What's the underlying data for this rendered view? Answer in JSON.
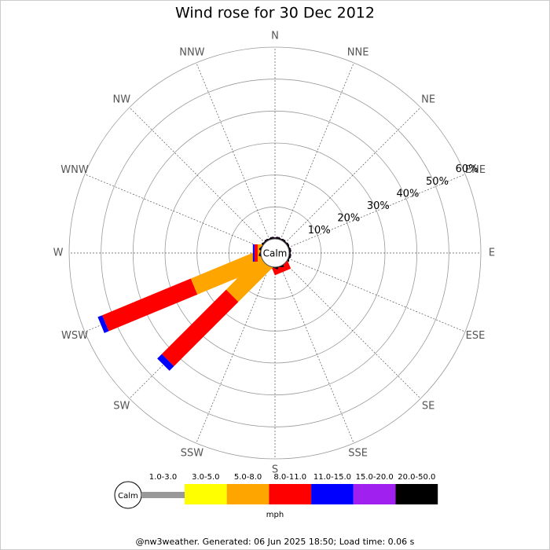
{
  "chart_data": {
    "type": "windrose",
    "title": "Wind rose for 30 Dec 2012",
    "calm_label": "Calm",
    "categories": [
      "N",
      "NNE",
      "NE",
      "ENE",
      "E",
      "ESE",
      "SE",
      "SSE",
      "S",
      "SSW",
      "SW",
      "WSW",
      "W",
      "WNW",
      "NW",
      "NNW"
    ],
    "rlim": [
      0,
      60
    ],
    "rticks": [
      {
        "value": 10,
        "label": "10%"
      },
      {
        "value": 20,
        "label": "20%"
      },
      {
        "value": 30,
        "label": "30%"
      },
      {
        "value": 40,
        "label": "40%"
      },
      {
        "value": 50,
        "label": "50%"
      },
      {
        "value": 60,
        "label": "60%"
      }
    ],
    "unit_label": "mph",
    "series": [
      {
        "name": "1.0-3.0",
        "color": "#999999",
        "values": [
          0,
          0,
          0,
          0,
          0,
          0,
          0,
          0,
          0,
          0,
          0,
          0,
          0,
          0,
          0,
          0
        ]
      },
      {
        "name": "3.0-5.0",
        "color": "#ffff00",
        "values": [
          0,
          0,
          0,
          0,
          0,
          0,
          0,
          0,
          0,
          0,
          0,
          0,
          0,
          0,
          0,
          0
        ]
      },
      {
        "name": "5.0-8.0",
        "color": "#ffa500",
        "values": [
          0,
          0,
          0,
          0,
          0,
          0,
          0,
          0,
          0,
          0,
          14.5,
          23,
          1,
          0,
          0,
          0
        ]
      },
      {
        "name": "8.0-11.0",
        "color": "#ff0000",
        "values": [
          0,
          0,
          0,
          0,
          0,
          0,
          0,
          2,
          0,
          0,
          28.5,
          30,
          1,
          0,
          0,
          0
        ]
      },
      {
        "name": "11.0-15.0",
        "color": "#0000ff",
        "values": [
          0,
          0,
          0,
          0,
          0,
          0,
          0,
          0,
          0,
          0,
          2,
          1.5,
          0.5,
          0,
          0,
          0
        ]
      },
      {
        "name": "15.0-20.0",
        "color": "#a020f0",
        "values": [
          0,
          0,
          0,
          0,
          0,
          0,
          0,
          0,
          0,
          0,
          0,
          0,
          0,
          0,
          0,
          0
        ]
      },
      {
        "name": "20.0-50.0",
        "color": "#000000",
        "values": [
          0,
          0,
          0,
          0,
          0,
          0,
          0,
          0,
          0,
          0,
          0,
          0,
          0,
          0,
          0,
          0
        ]
      }
    ],
    "footer": "@nw3weather. Generated: 06 Jun 2025 18:50; Load time: 0.06 s"
  }
}
